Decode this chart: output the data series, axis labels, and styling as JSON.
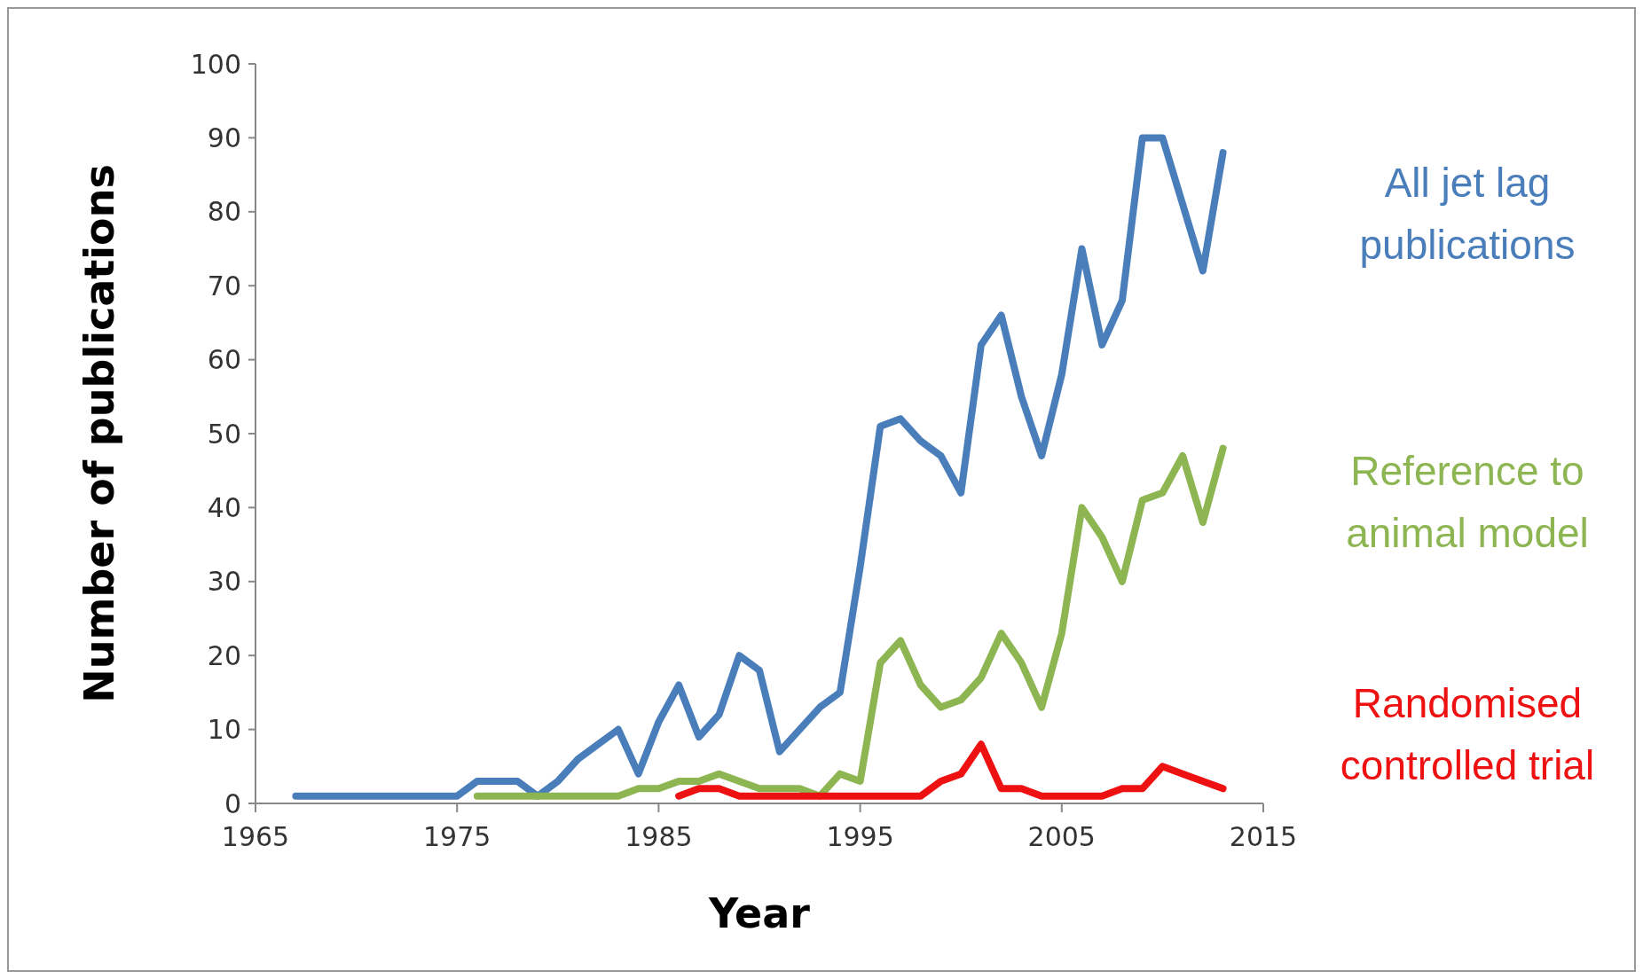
{
  "chart_data": {
    "type": "line",
    "xlabel": "Year",
    "ylabel": "Number of publications",
    "xlim": [
      1965,
      2015
    ],
    "xticks": [
      1965,
      1975,
      1985,
      1995,
      2005,
      2015
    ],
    "ylim": [
      0,
      100
    ],
    "yticks": [
      0,
      10,
      20,
      30,
      40,
      50,
      60,
      70,
      80,
      90,
      100
    ],
    "grid": false,
    "marker": "none",
    "line_style": "solid",
    "series": [
      {
        "name": "All jet lag publications",
        "color": "#4a7ebb",
        "x": [
          1967,
          1968,
          1969,
          1970,
          1971,
          1972,
          1973,
          1974,
          1975,
          1976,
          1977,
          1978,
          1979,
          1980,
          1981,
          1982,
          1983,
          1984,
          1985,
          1986,
          1987,
          1988,
          1989,
          1990,
          1991,
          1992,
          1993,
          1994,
          1995,
          1996,
          1997,
          1998,
          1999,
          2000,
          2001,
          2002,
          2003,
          2004,
          2005,
          2006,
          2007,
          2008,
          2009,
          2010,
          2011,
          2012,
          2013
        ],
        "values": [
          1,
          1,
          1,
          1,
          1,
          1,
          1,
          1,
          1,
          3,
          3,
          3,
          1,
          3,
          6,
          8,
          10,
          4,
          11,
          16,
          9,
          12,
          20,
          18,
          7,
          10,
          13,
          15,
          32,
          51,
          52,
          49,
          47,
          42,
          62,
          66,
          55,
          47,
          58,
          75,
          62,
          68,
          90,
          90,
          81,
          72,
          88
        ]
      },
      {
        "name": "Reference to animal model",
        "color": "#8db652",
        "x": [
          1976,
          1977,
          1978,
          1979,
          1980,
          1981,
          1982,
          1983,
          1984,
          1985,
          1986,
          1987,
          1988,
          1989,
          1990,
          1991,
          1992,
          1993,
          1994,
          1995,
          1996,
          1997,
          1998,
          1999,
          2000,
          2001,
          2002,
          2003,
          2004,
          2005,
          2006,
          2007,
          2008,
          2009,
          2010,
          2011,
          2012,
          2013
        ],
        "values": [
          1,
          1,
          1,
          1,
          1,
          1,
          1,
          1,
          2,
          2,
          3,
          3,
          4,
          3,
          2,
          2,
          2,
          1,
          4,
          3,
          19,
          22,
          16,
          13,
          14,
          17,
          23,
          19,
          13,
          23,
          40,
          36,
          30,
          41,
          42,
          47,
          38,
          48
        ]
      },
      {
        "name": "Randomised controlled trial",
        "color": "#ee1111",
        "x": [
          1986,
          1987,
          1988,
          1989,
          1990,
          1991,
          1992,
          1993,
          1994,
          1995,
          1996,
          1997,
          1998,
          1999,
          2000,
          2001,
          2002,
          2003,
          2004,
          2005,
          2006,
          2007,
          2008,
          2009,
          2010,
          2011,
          2012,
          2013
        ],
        "values": [
          1,
          2,
          2,
          1,
          1,
          1,
          1,
          1,
          1,
          1,
          1,
          1,
          1,
          3,
          4,
          8,
          2,
          2,
          1,
          1,
          1,
          1,
          2,
          2,
          5,
          4,
          3,
          2
        ]
      }
    ]
  }
}
